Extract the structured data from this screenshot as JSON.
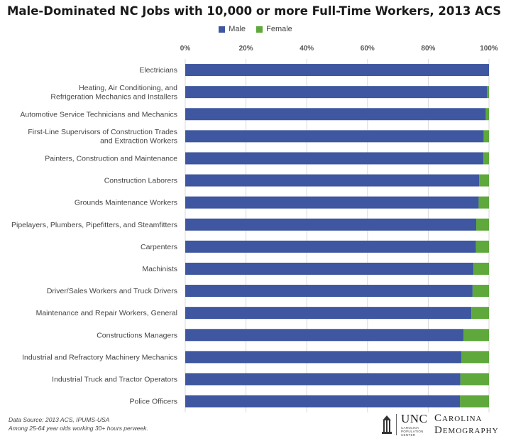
{
  "chart_data": {
    "type": "bar",
    "orientation": "horizontal",
    "stacked": true,
    "title": "Male-Dominated NC Jobs with 10,000 or more Full-Time Workers, 2013 ACS",
    "legend_position": "top",
    "grid": true,
    "xlim": [
      0,
      100
    ],
    "x_ticks": [
      "0%",
      "20%",
      "40%",
      "60%",
      "80%",
      "100%"
    ],
    "categories": [
      "Electricians",
      "Heating, Air Conditioning, and\nRefrigeration Mechanics and Installers",
      "Automotive Service Technicians and Mechanics",
      "First-Line Supervisors of Construction Trades\nand Extraction Workers",
      "Painters, Construction and Maintenance",
      "Construction Laborers",
      "Grounds Maintenance Workers",
      "Pipelayers, Plumbers, Pipefitters, and Steamfitters",
      "Carpenters",
      "Machinists",
      "Driver/Sales Workers and Truck Drivers",
      "Maintenance and Repair Workers, General",
      "Constructions Managers",
      "Industrial and Refractory Machinery Mechanics",
      "Industrial Truck and Tractor Operators",
      "Police Officers"
    ],
    "series": [
      {
        "name": "Male",
        "color": "#3f57a0",
        "values": [
          100,
          99.3,
          99,
          98.3,
          98.2,
          96.8,
          96.6,
          95.8,
          95.7,
          94.9,
          94.6,
          94.2,
          91.6,
          90.9,
          90.6,
          90.5
        ]
      },
      {
        "name": "Female",
        "color": "#5ea83c",
        "values": [
          0,
          0.7,
          1,
          1.7,
          1.8,
          3.2,
          3.4,
          4.2,
          4.3,
          5.1,
          5.4,
          5.8,
          8.4,
          9.1,
          9.4,
          9.5
        ]
      }
    ]
  },
  "source_note": {
    "line1": "Data Source: 2013 ACS, IPUMS-USA",
    "line2": "Among 25-64 year olds working 30+ hours perweek."
  },
  "logo": {
    "unc": "UNC",
    "center_text": "CAROLINA POPULATION CENTER",
    "name_line1": "Carolina",
    "name_line2": "Demography"
  }
}
